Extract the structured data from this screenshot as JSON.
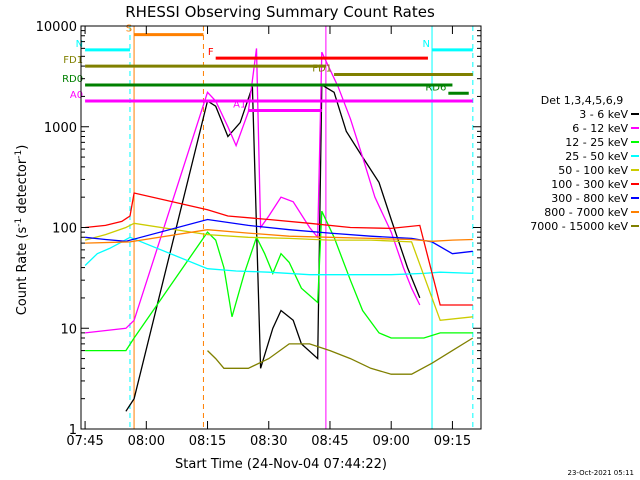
{
  "chart_data": {
    "type": "line",
    "title": "RHESSI Observing Summary Count Rates",
    "xlabel": "Start Time (24-Nov-04 07:44:22)",
    "ylabel_main": "Count Rate (s",
    "ylabel_sup1": "-1",
    "ylabel_mid": " detector",
    "ylabel_sup2": "-1",
    "ylabel_end": ")",
    "yscale": "log",
    "xlim": [
      "07:44",
      "09:22"
    ],
    "ylim": [
      1,
      10000
    ],
    "x_ticks": [
      "07:45",
      "08:00",
      "08:15",
      "08:30",
      "08:45",
      "09:00",
      "09:15"
    ],
    "y_ticks": [
      "1",
      "10",
      "100",
      "1000",
      "10000"
    ],
    "legend_title": "Det 1,3,4,5,6,9",
    "legend_position": "right",
    "timestamp": "23-Oct-2021 05:11",
    "series": [
      {
        "name": "3 - 6 keV",
        "color": "#000000",
        "points": [
          [
            "07:55",
            1.5
          ],
          [
            "07:57",
            2
          ],
          [
            "08:15",
            1800
          ],
          [
            "08:17",
            1600
          ],
          [
            "08:20",
            800
          ],
          [
            "08:23",
            1100
          ],
          [
            "08:26",
            2500
          ],
          [
            "08:28",
            4
          ],
          [
            "08:31",
            10
          ],
          [
            "08:33",
            15
          ],
          [
            "08:36",
            12
          ],
          [
            "08:38",
            7
          ],
          [
            "08:42",
            5
          ],
          [
            "08:43",
            2600
          ],
          [
            "08:46",
            2200
          ],
          [
            "08:49",
            900
          ],
          [
            "08:53",
            500
          ],
          [
            "08:57",
            280
          ],
          [
            "09:00",
            120
          ],
          [
            "09:04",
            40
          ],
          [
            "09:07",
            20
          ]
        ]
      },
      {
        "name": "6 - 12 keV",
        "color": "#ff00ff",
        "points": [
          [
            "07:45",
            9
          ],
          [
            "07:55",
            10
          ],
          [
            "07:57",
            12
          ],
          [
            "08:15",
            2200
          ],
          [
            "08:17",
            1800
          ],
          [
            "08:20",
            1000
          ],
          [
            "08:22",
            650
          ],
          [
            "08:25",
            1400
          ],
          [
            "08:27",
            6000
          ],
          [
            "08:28",
            100
          ],
          [
            "08:30",
            130
          ],
          [
            "08:33",
            200
          ],
          [
            "08:36",
            180
          ],
          [
            "08:40",
            100
          ],
          [
            "08:42",
            80
          ],
          [
            "08:43",
            5500
          ],
          [
            "08:47",
            2500
          ],
          [
            "08:50",
            1200
          ],
          [
            "08:53",
            500
          ],
          [
            "08:56",
            200
          ],
          [
            "09:00",
            90
          ],
          [
            "09:03",
            40
          ],
          [
            "09:05",
            25
          ],
          [
            "09:07",
            17
          ]
        ]
      },
      {
        "name": "12 - 25 keV",
        "color": "#00ff00",
        "points": [
          [
            "07:45",
            6
          ],
          [
            "07:55",
            6
          ],
          [
            "07:57",
            8
          ],
          [
            "08:15",
            90
          ],
          [
            "08:17",
            75
          ],
          [
            "08:19",
            40
          ],
          [
            "08:21",
            13
          ],
          [
            "08:24",
            35
          ],
          [
            "08:27",
            80
          ],
          [
            "08:29",
            55
          ],
          [
            "08:31",
            35
          ],
          [
            "08:33",
            55
          ],
          [
            "08:35",
            45
          ],
          [
            "08:38",
            25
          ],
          [
            "08:42",
            18
          ],
          [
            "08:43",
            145
          ],
          [
            "08:46",
            80
          ],
          [
            "08:50",
            30
          ],
          [
            "08:53",
            15
          ],
          [
            "08:57",
            9
          ],
          [
            "09:00",
            8
          ],
          [
            "09:05",
            8
          ],
          [
            "09:08",
            8
          ],
          [
            "09:12",
            9
          ],
          [
            "09:20",
            9
          ]
        ]
      },
      {
        "name": "25 - 50 keV",
        "color": "#00ffff",
        "points": [
          [
            "07:45",
            42
          ],
          [
            "07:48",
            55
          ],
          [
            "07:51",
            62
          ],
          [
            "07:54",
            72
          ],
          [
            "07:56",
            80
          ],
          [
            "08:15",
            39
          ],
          [
            "08:22",
            37
          ],
          [
            "08:30",
            36
          ],
          [
            "08:40",
            34
          ],
          [
            "08:50",
            34
          ],
          [
            "09:00",
            34
          ],
          [
            "09:08",
            35
          ],
          [
            "09:12",
            36
          ],
          [
            "09:20",
            35
          ]
        ]
      },
      {
        "name": "50 - 100 keV",
        "color": "#cccc00",
        "points": [
          [
            "07:45",
            75
          ],
          [
            "07:50",
            85
          ],
          [
            "07:55",
            100
          ],
          [
            "07:57",
            110
          ],
          [
            "08:15",
            85
          ],
          [
            "08:25",
            80
          ],
          [
            "08:35",
            78
          ],
          [
            "08:45",
            75
          ],
          [
            "08:55",
            75
          ],
          [
            "09:05",
            72
          ],
          [
            "09:12",
            12
          ],
          [
            "09:20",
            13
          ]
        ]
      },
      {
        "name": "100 - 300 keV",
        "color": "#ff0000",
        "points": [
          [
            "07:45",
            100
          ],
          [
            "07:50",
            105
          ],
          [
            "07:54",
            115
          ],
          [
            "07:56",
            130
          ],
          [
            "07:57",
            220
          ],
          [
            "08:15",
            150
          ],
          [
            "08:20",
            130
          ],
          [
            "08:30",
            120
          ],
          [
            "08:40",
            110
          ],
          [
            "08:50",
            100
          ],
          [
            "09:00",
            98
          ],
          [
            "09:07",
            105
          ],
          [
            "09:12",
            17
          ],
          [
            "09:20",
            17
          ]
        ]
      },
      {
        "name": "300 - 800 keV",
        "color": "#0000ff",
        "points": [
          [
            "07:45",
            80
          ],
          [
            "07:50",
            76
          ],
          [
            "07:55",
            73
          ],
          [
            "08:15",
            120
          ],
          [
            "08:25",
            105
          ],
          [
            "08:35",
            95
          ],
          [
            "08:45",
            88
          ],
          [
            "08:55",
            82
          ],
          [
            "09:05",
            78
          ],
          [
            "09:10",
            72
          ],
          [
            "09:15",
            55
          ],
          [
            "09:20",
            58
          ]
        ]
      },
      {
        "name": "800 - 7000 keV",
        "color": "#ff8000",
        "points": [
          [
            "07:45",
            70
          ],
          [
            "07:56",
            72
          ],
          [
            "08:15",
            95
          ],
          [
            "08:25",
            88
          ],
          [
            "08:35",
            82
          ],
          [
            "08:45",
            80
          ],
          [
            "08:55",
            78
          ],
          [
            "09:05",
            76
          ],
          [
            "09:10",
            73
          ],
          [
            "09:15",
            75
          ],
          [
            "09:20",
            76
          ]
        ]
      },
      {
        "name": "7000 - 15000 keV",
        "color": "#808000",
        "points": [
          [
            "08:15",
            6
          ],
          [
            "08:17",
            5
          ],
          [
            "08:19",
            4
          ],
          [
            "08:25",
            4
          ],
          [
            "08:30",
            5
          ],
          [
            "08:35",
            7
          ],
          [
            "08:40",
            7
          ],
          [
            "08:45",
            6
          ],
          [
            "08:50",
            5
          ],
          [
            "08:55",
            4
          ],
          [
            "09:00",
            3.5
          ],
          [
            "09:05",
            3.5
          ],
          [
            "09:10",
            4.5
          ],
          [
            "09:15",
            6
          ],
          [
            "09:20",
            8
          ]
        ]
      }
    ],
    "segments": [
      {
        "label": "S",
        "color": "#ff8000",
        "start": "07:57",
        "end": "08:14",
        "y": 8200
      },
      {
        "label": "N",
        "color": "#00ffff",
        "start": "07:45",
        "end": "07:56",
        "y": 5800
      },
      {
        "label": "N",
        "color": "#00ffff",
        "start": "09:10",
        "end": "09:20",
        "y": 5800
      },
      {
        "label": "F",
        "color": "#ff0000",
        "start": "08:17",
        "end": "09:09",
        "y": 4800
      },
      {
        "label": "FD1",
        "color": "#808000",
        "start": "07:45",
        "end": "08:44",
        "y": 4000
      },
      {
        "label": "FD1",
        "color": "#808000",
        "start": "08:46",
        "end": "09:20",
        "y": 3300
      },
      {
        "label": "RD0",
        "color": "#008000",
        "start": "07:45",
        "end": "09:15",
        "y": 2600
      },
      {
        "label": "RD6",
        "color": "#008000",
        "start": "09:14",
        "end": "09:19",
        "y": 2150
      },
      {
        "label": "A0",
        "color": "#ff00ff",
        "start": "07:45",
        "end": "09:20",
        "y": 1800
      },
      {
        "label": "A1",
        "color": "#ff00ff",
        "start": "08:25",
        "end": "08:43",
        "y": 1450
      }
    ],
    "vlines": [
      {
        "time": "07:56",
        "color": "#00ffff",
        "style": "dashed"
      },
      {
        "time": "07:57",
        "color": "#ff8000",
        "style": "solid"
      },
      {
        "time": "08:14",
        "color": "#ff8000",
        "style": "dashed"
      },
      {
        "time": "08:44",
        "color": "#ff00ff",
        "style": "solid"
      },
      {
        "time": "09:10",
        "color": "#00ffff",
        "style": "solid"
      },
      {
        "time": "09:20",
        "color": "#00ffff",
        "style": "dashed"
      }
    ]
  }
}
